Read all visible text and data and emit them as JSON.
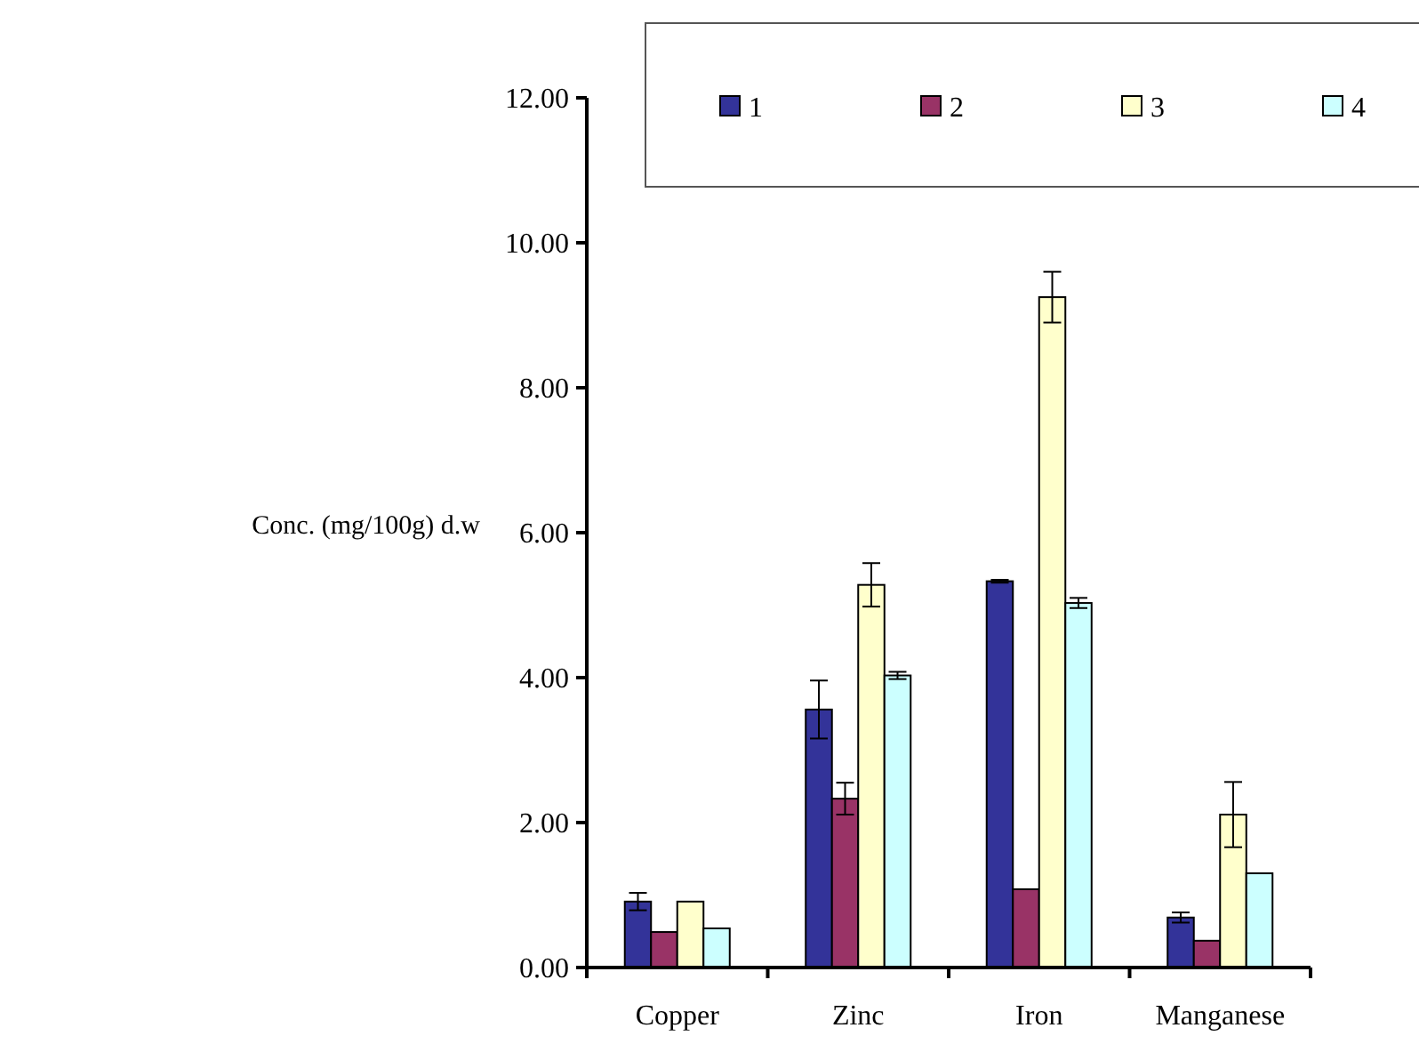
{
  "chart_data": {
    "type": "bar",
    "ylabel": "Conc. (mg/100g) d.w",
    "categories": [
      "Copper",
      "Zinc",
      "Iron",
      "Manganese"
    ],
    "series": [
      {
        "name": "1",
        "color": "#333399",
        "values": [
          0.91,
          3.56,
          5.33,
          0.69
        ],
        "errors": [
          0.12,
          0.4,
          0.02,
          0.07
        ]
      },
      {
        "name": "2",
        "color": "#993366",
        "values": [
          0.49,
          2.33,
          1.08,
          0.37
        ],
        "errors": [
          null,
          0.22,
          null,
          null
        ]
      },
      {
        "name": "3",
        "color": "#ffffcc",
        "values": [
          0.91,
          5.28,
          9.25,
          2.11
        ],
        "errors": [
          null,
          0.3,
          0.35,
          0.45
        ]
      },
      {
        "name": "4",
        "color": "#ccffff",
        "values": [
          0.54,
          4.03,
          5.03,
          1.3
        ],
        "errors": [
          null,
          0.05,
          0.07,
          null
        ]
      }
    ],
    "ylim": [
      0,
      12
    ],
    "yticks": [
      {
        "value": 0,
        "label": "0.00"
      },
      {
        "value": 2,
        "label": "2.00"
      },
      {
        "value": 4,
        "label": "4.00"
      },
      {
        "value": 6,
        "label": "6.00"
      },
      {
        "value": 8,
        "label": "8.00"
      },
      {
        "value": 10,
        "label": "10.00"
      },
      {
        "value": 12,
        "label": "12.00"
      }
    ],
    "grid": false,
    "legend": "top right"
  }
}
